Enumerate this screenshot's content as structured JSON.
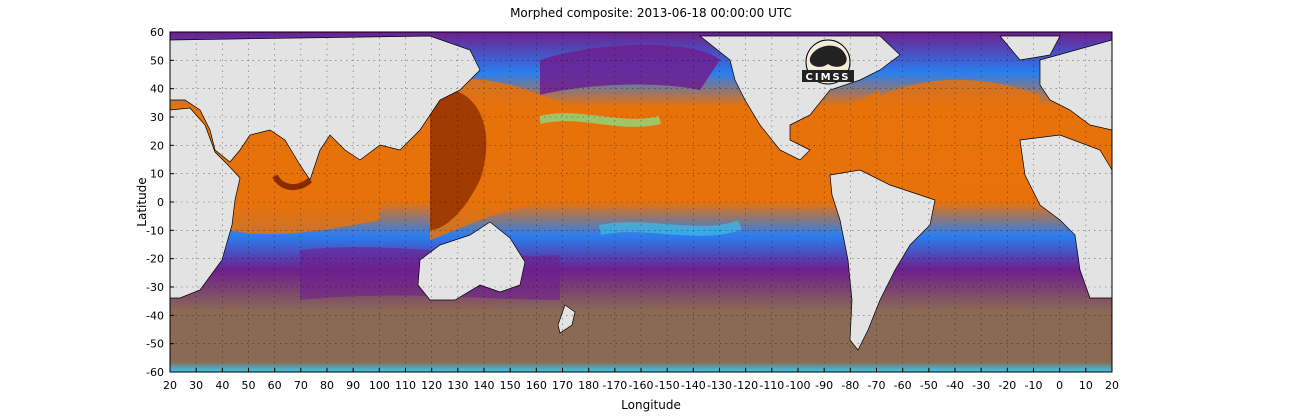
{
  "title": "Morphed composite: 2013-06-18 00:00:00 UTC",
  "xlabel": "Longitude",
  "ylabel": "Latitude",
  "logo_text": "CIMSS",
  "x_ticks": [
    "20",
    "30",
    "40",
    "50",
    "60",
    "70",
    "80",
    "90",
    "100",
    "110",
    "120",
    "130",
    "140",
    "150",
    "160",
    "170",
    "180",
    "-170",
    "-160",
    "-150",
    "-140",
    "-130",
    "-120",
    "-110",
    "-100",
    "-90",
    "-80",
    "-70",
    "-60",
    "-50",
    "-40",
    "-30",
    "-20",
    "-10",
    "0",
    "10",
    "20"
  ],
  "y_ticks": [
    "60",
    "50",
    "40",
    "30",
    "20",
    "10",
    "0",
    "-10",
    "-20",
    "-30",
    "-40",
    "-50",
    "-60"
  ],
  "colors": {
    "ocean_dry": "#8a6a54",
    "purple": "#6e1f8e",
    "blue": "#2a7ef0",
    "cyan": "#38c8f0",
    "green": "#80e890",
    "orange": "#e8720a",
    "dark_brown": "#8a2a00",
    "land": "#e3e3e3"
  }
}
